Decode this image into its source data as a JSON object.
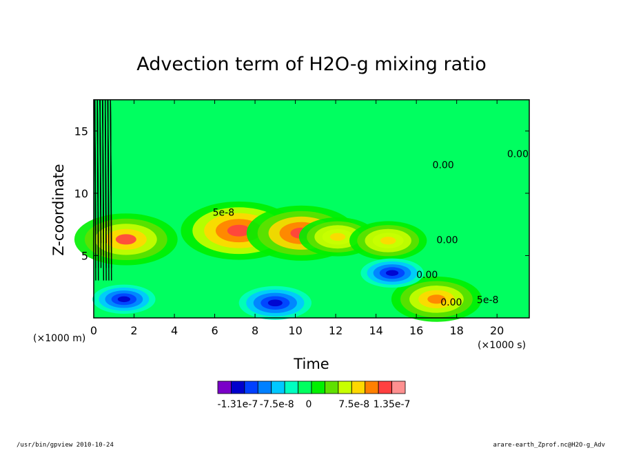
{
  "chart_data": {
    "type": "heatmap",
    "title": "Advection term of H2O-g mixing ratio",
    "xlabel": "Time",
    "ylabel": "Z-coordinate",
    "x_unit": "(×1000 s)",
    "y_unit": "(×1000 m)",
    "xlim": [
      0,
      21.6
    ],
    "ylim": [
      0,
      17.5
    ],
    "x_ticks": [
      0,
      2,
      4,
      6,
      8,
      10,
      12,
      14,
      16,
      18,
      20
    ],
    "y_ticks": [
      5,
      10,
      15
    ],
    "colorbar": {
      "colors": [
        "#7a00c8",
        "#0000cc",
        "#0040ff",
        "#0080ff",
        "#00c8ff",
        "#00ffc0",
        "#00ff60",
        "#00f000",
        "#60e000",
        "#c8ff00",
        "#ffd800",
        "#ff8000",
        "#ff4040",
        "#ff9090"
      ],
      "labels": [
        "-1.31e-7",
        "-7.5e-8",
        "0",
        "7.5e-8",
        "1.35e-7"
      ]
    },
    "contour_labels": [
      "5e-8",
      "0.00",
      "0.00",
      "0.00",
      "0.00",
      "0.00",
      "5e-8"
    ],
    "features": [
      {
        "kind": "positive",
        "x": 1.6,
        "y": 6.3,
        "strength": 1.6
      },
      {
        "kind": "positive",
        "x": 7.2,
        "y": 7.0,
        "strength": 1.8
      },
      {
        "kind": "positive",
        "x": 10.3,
        "y": 6.8,
        "strength": 1.7
      },
      {
        "kind": "positive",
        "x": 12.1,
        "y": 6.5,
        "strength": 1.2
      },
      {
        "kind": "positive",
        "x": 14.6,
        "y": 6.2,
        "strength": 1.2
      },
      {
        "kind": "positive",
        "x": 17.0,
        "y": 1.5,
        "strength": 1.4
      },
      {
        "kind": "negative",
        "x": 1.5,
        "y": 1.5,
        "strength": 1.3
      },
      {
        "kind": "negative",
        "x": 9.0,
        "y": 1.2,
        "strength": 1.5
      },
      {
        "kind": "negative",
        "x": 14.8,
        "y": 3.6,
        "strength": 1.3
      }
    ]
  },
  "footer": {
    "left": "/usr/bin/gpview  2010-10-24",
    "right": "arare-earth_Zprof.nc@H2O-g_Adv"
  }
}
